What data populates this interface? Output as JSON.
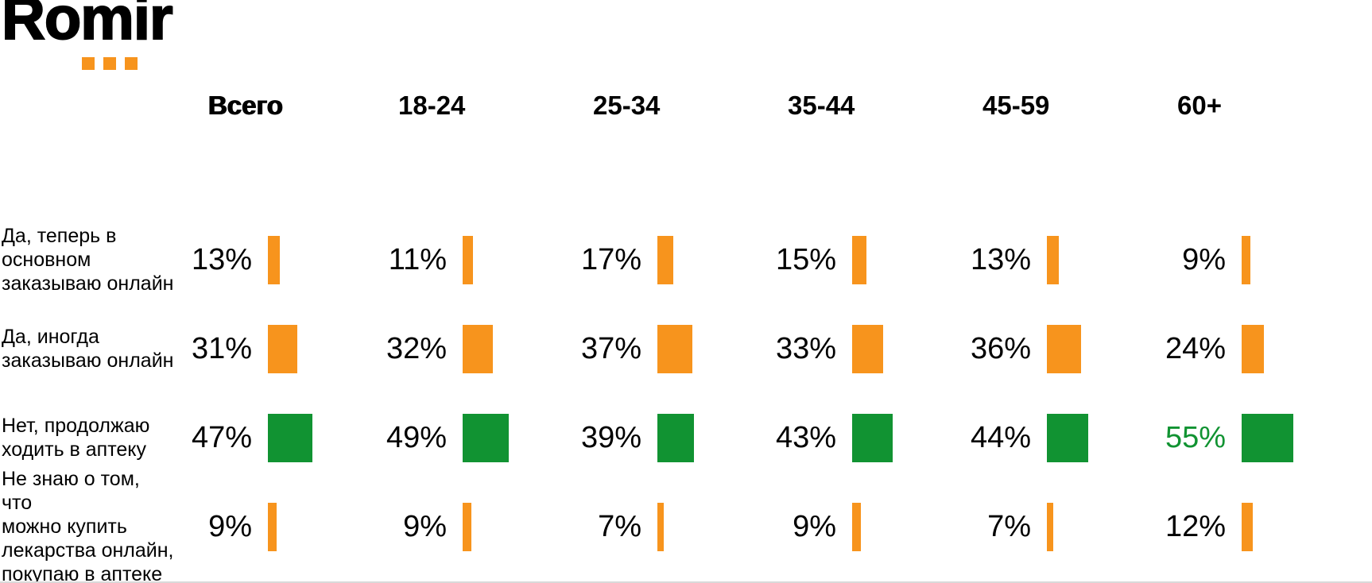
{
  "logo": {
    "text": "Romir",
    "dots_color": "#F7941D"
  },
  "colors": {
    "orange": "#F7941D",
    "green": "#119332",
    "highlight_text": "#119332",
    "text": "#000000"
  },
  "chart_data": {
    "type": "bar",
    "unit": "%",
    "legend_position": "none",
    "grid": false,
    "columns": [
      "Всего",
      "18-24",
      "25-34",
      "35-44",
      "45-59",
      "60+"
    ],
    "rows": [
      {
        "label": "Да, теперь в\nосновном\nзаказываю онлайн",
        "values": [
          13,
          11,
          17,
          15,
          13,
          9
        ],
        "color": "orange"
      },
      {
        "label": "Да, иногда\nзаказываю онлайн",
        "values": [
          31,
          32,
          37,
          33,
          36,
          24
        ],
        "color": "orange"
      },
      {
        "label": "Нет, продолжаю\nходить в аптеку",
        "values": [
          47,
          49,
          39,
          43,
          44,
          55
        ],
        "color": "green",
        "highlight_column_index": 5
      },
      {
        "label": "Не знаю о том, что\nможно купить\nлекарства онлайн,\nпокупаю в аптеке",
        "values": [
          9,
          9,
          7,
          9,
          7,
          12
        ],
        "color": "orange"
      }
    ]
  }
}
